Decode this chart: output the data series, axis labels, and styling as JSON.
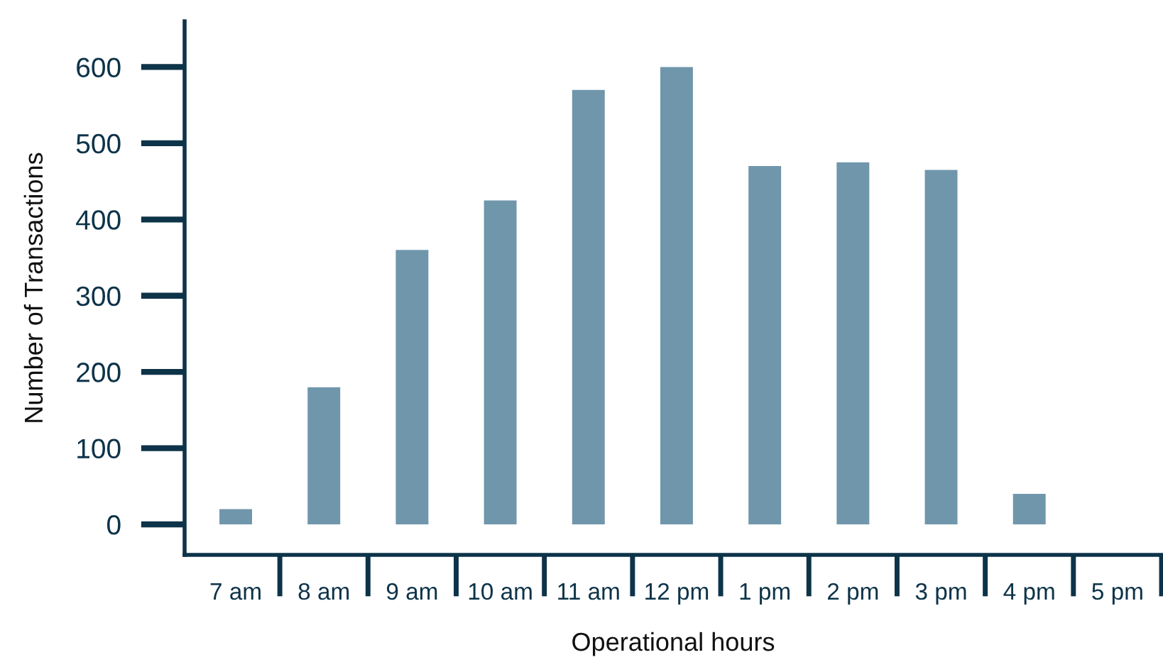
{
  "chart_data": {
    "type": "bar",
    "xlabel": "Operational hours",
    "ylabel": "Number of Transactions",
    "categories": [
      "7 am",
      "8 am",
      "9 am",
      "10 am",
      "11 am",
      "12 pm",
      "1 pm",
      "2 pm",
      "3 pm",
      "4 pm",
      "5 pm"
    ],
    "values": [
      20,
      180,
      360,
      425,
      570,
      600,
      470,
      475,
      465,
      40,
      0
    ],
    "color": "#7096ab",
    "ylim": [
      -40,
      660
    ],
    "yticks": [
      0,
      100,
      200,
      300,
      400,
      500,
      600
    ],
    "grid": false,
    "legend": false
  }
}
